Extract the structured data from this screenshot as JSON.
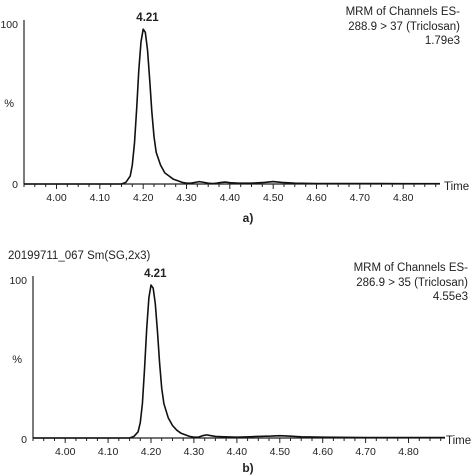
{
  "chart_data": [
    {
      "type": "line",
      "panel_label": "a)",
      "sample_label": "",
      "header_lines": [
        "MRM of Channels ES-",
        "288.9 > 37 (Triclosan)",
        "1.79e3"
      ],
      "ylabel": "%",
      "y_ticks": [
        "100",
        "0"
      ],
      "xlabel": "Time",
      "x_ticks": [
        "4.00",
        "4.10",
        "4.20",
        "4.30",
        "4.40",
        "4.50",
        "4.60",
        "4.70",
        "4.80"
      ],
      "xlim": [
        3.925,
        4.885
      ],
      "ylim": [
        0,
        100
      ],
      "peak_label": "4.21",
      "peak_x": 4.21,
      "x": [
        3.925,
        4.15,
        4.16,
        4.17,
        4.175,
        4.18,
        4.185,
        4.19,
        4.195,
        4.2,
        4.205,
        4.21,
        4.215,
        4.22,
        4.225,
        4.23,
        4.24,
        4.25,
        4.26,
        4.27,
        4.28,
        4.29,
        4.3,
        4.31,
        4.32,
        4.33,
        4.34,
        4.35,
        4.36,
        4.37,
        4.38,
        4.39,
        4.4,
        4.42,
        4.45,
        4.48,
        4.5,
        4.52,
        4.55,
        4.6,
        4.7,
        4.8,
        4.885
      ],
      "y": [
        0,
        0,
        1,
        5,
        12,
        26,
        48,
        72,
        90,
        98,
        96,
        85,
        66,
        46,
        30,
        20,
        12,
        7,
        5,
        3,
        2,
        1,
        0.5,
        0.5,
        1,
        1.5,
        1,
        0.5,
        0.3,
        0.5,
        1,
        1.2,
        0.8,
        0.5,
        0.5,
        1,
        1.5,
        1,
        0.5,
        0.3,
        0.3,
        0.2,
        0.2
      ]
    },
    {
      "type": "line",
      "panel_label": "b)",
      "sample_label": "20199711_067 Sm(SG,2x3)",
      "header_lines": [
        "MRM of Channels ES-",
        "286.9 > 35 (Triclosan)",
        "4.55e3"
      ],
      "ylabel": "%",
      "y_ticks": [
        "100",
        "0"
      ],
      "xlabel": "Time",
      "x_ticks": [
        "4.00",
        "4.10",
        "4.20",
        "4.30",
        "4.40",
        "4.50",
        "4.60",
        "4.70",
        "4.80"
      ],
      "xlim": [
        3.925,
        4.885
      ],
      "ylim": [
        0,
        100
      ],
      "peak_label": "4.21",
      "peak_x": 4.21,
      "x": [
        3.925,
        4.15,
        4.16,
        4.17,
        4.175,
        4.18,
        4.185,
        4.19,
        4.195,
        4.2,
        4.205,
        4.21,
        4.215,
        4.22,
        4.225,
        4.23,
        4.24,
        4.25,
        4.26,
        4.27,
        4.28,
        4.29,
        4.3,
        4.31,
        4.32,
        4.33,
        4.34,
        4.35,
        4.37,
        4.4,
        4.43,
        4.45,
        4.48,
        4.5,
        4.52,
        4.55,
        4.6,
        4.7,
        4.8,
        4.885
      ],
      "y": [
        0,
        0,
        1,
        4,
        10,
        22,
        45,
        70,
        90,
        98,
        96,
        86,
        68,
        48,
        32,
        22,
        13,
        8,
        5,
        3,
        2,
        1,
        0.5,
        0.5,
        1.5,
        2,
        1.5,
        1,
        0.8,
        0.5,
        0.8,
        1,
        1.2,
        1.5,
        1.2,
        0.8,
        0.5,
        0.3,
        0.3,
        0.3
      ]
    }
  ]
}
